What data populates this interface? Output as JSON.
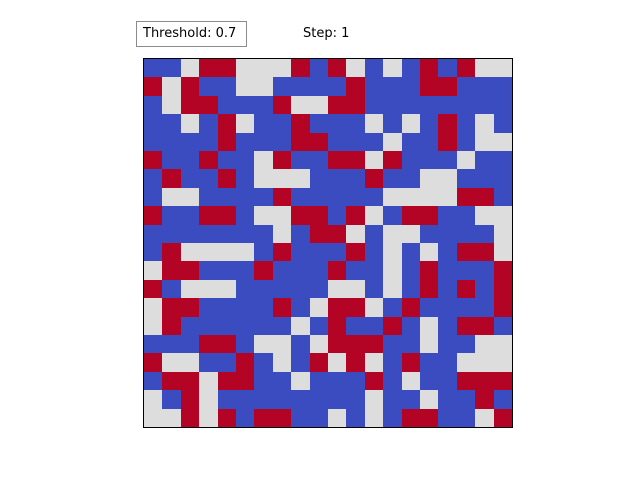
{
  "controls": {
    "threshold_label": "Threshold: 0.7",
    "step_label": "Step: 1"
  },
  "legend_colors": {
    "0": "#3b4cc0",
    "1": "#dddddd",
    "2": "#b40426"
  },
  "grid": {
    "rows": 20,
    "cols": 20,
    "cells": [
      [
        0,
        0,
        1,
        2,
        2,
        1,
        1,
        1,
        2,
        0,
        2,
        1,
        0,
        1,
        0,
        2,
        0,
        2,
        1,
        1
      ],
      [
        2,
        1,
        2,
        0,
        0,
        1,
        1,
        0,
        0,
        0,
        0,
        2,
        0,
        0,
        0,
        2,
        2,
        0,
        0,
        0
      ],
      [
        0,
        1,
        2,
        2,
        0,
        0,
        0,
        2,
        1,
        1,
        2,
        2,
        0,
        0,
        0,
        0,
        0,
        0,
        0,
        0
      ],
      [
        0,
        0,
        1,
        0,
        2,
        1,
        0,
        0,
        2,
        0,
        0,
        0,
        1,
        0,
        1,
        0,
        2,
        0,
        1,
        0
      ],
      [
        0,
        0,
        0,
        0,
        2,
        0,
        0,
        0,
        2,
        2,
        0,
        0,
        0,
        1,
        0,
        0,
        2,
        0,
        1,
        1
      ],
      [
        2,
        0,
        0,
        2,
        0,
        0,
        1,
        2,
        0,
        0,
        2,
        2,
        1,
        2,
        0,
        0,
        0,
        1,
        0,
        0
      ],
      [
        0,
        2,
        0,
        0,
        2,
        0,
        1,
        1,
        1,
        0,
        0,
        0,
        2,
        0,
        0,
        1,
        1,
        0,
        0,
        0
      ],
      [
        0,
        1,
        1,
        0,
        0,
        0,
        0,
        2,
        0,
        0,
        0,
        0,
        0,
        1,
        1,
        1,
        1,
        2,
        2,
        0
      ],
      [
        2,
        0,
        0,
        2,
        2,
        0,
        1,
        1,
        2,
        2,
        0,
        2,
        1,
        0,
        2,
        2,
        0,
        0,
        1,
        1
      ],
      [
        0,
        0,
        0,
        0,
        0,
        0,
        0,
        1,
        0,
        2,
        2,
        1,
        0,
        1,
        1,
        0,
        0,
        0,
        0,
        1
      ],
      [
        0,
        2,
        1,
        1,
        1,
        1,
        0,
        2,
        0,
        0,
        0,
        2,
        0,
        1,
        0,
        1,
        0,
        2,
        2,
        1
      ],
      [
        1,
        2,
        2,
        0,
        0,
        0,
        2,
        0,
        0,
        0,
        2,
        0,
        0,
        1,
        0,
        2,
        0,
        0,
        0,
        2
      ],
      [
        2,
        0,
        1,
        1,
        1,
        0,
        0,
        0,
        0,
        0,
        1,
        1,
        0,
        1,
        0,
        2,
        0,
        2,
        0,
        2
      ],
      [
        1,
        2,
        2,
        0,
        0,
        0,
        0,
        2,
        0,
        1,
        2,
        2,
        1,
        0,
        2,
        0,
        0,
        0,
        0,
        2
      ],
      [
        1,
        2,
        0,
        0,
        0,
        0,
        0,
        0,
        1,
        0,
        2,
        0,
        0,
        2,
        0,
        1,
        0,
        2,
        2,
        0
      ],
      [
        0,
        0,
        0,
        2,
        2,
        0,
        1,
        1,
        0,
        1,
        2,
        2,
        2,
        0,
        0,
        1,
        0,
        0,
        1,
        1
      ],
      [
        2,
        1,
        1,
        0,
        0,
        2,
        0,
        1,
        0,
        2,
        1,
        2,
        1,
        0,
        2,
        0,
        0,
        1,
        1,
        1
      ],
      [
        0,
        2,
        2,
        1,
        2,
        2,
        0,
        0,
        1,
        0,
        0,
        0,
        2,
        0,
        1,
        0,
        0,
        2,
        2,
        2
      ],
      [
        1,
        0,
        2,
        1,
        0,
        0,
        0,
        0,
        0,
        0,
        0,
        0,
        1,
        0,
        0,
        1,
        0,
        0,
        2,
        0
      ],
      [
        1,
        1,
        2,
        1,
        2,
        0,
        2,
        2,
        0,
        0,
        1,
        0,
        1,
        0,
        2,
        2,
        0,
        0,
        1,
        2
      ]
    ]
  }
}
